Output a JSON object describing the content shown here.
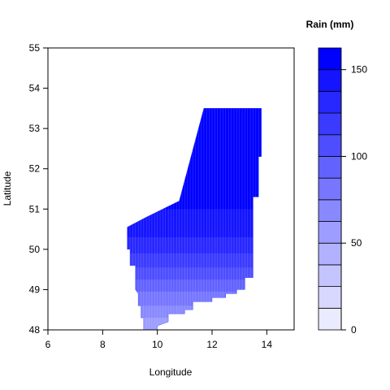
{
  "chart_data": {
    "type": "heatmap",
    "title": "",
    "xlabel": "Longitude",
    "ylabel": "Latitude",
    "xlim": [
      6,
      15
    ],
    "ylim": [
      48,
      55
    ],
    "xticks": [
      "6",
      "8",
      "10",
      "12",
      "14"
    ],
    "yticks": [
      "48",
      "49",
      "50",
      "51",
      "52",
      "53",
      "54",
      "55"
    ],
    "colorbar": {
      "title": "Rain (mm)",
      "range": [
        0,
        162.5
      ],
      "levels": 13,
      "ticks": [
        "0",
        "50",
        "100",
        "150"
      ],
      "low_color": "#ffffff",
      "high_color": "#0000ff"
    },
    "region_outline": [
      [
        9.5,
        48.0
      ],
      [
        10.0,
        48.0
      ],
      [
        10.0,
        48.1
      ],
      [
        10.4,
        48.2
      ],
      [
        10.4,
        48.4
      ],
      [
        11.0,
        48.4
      ],
      [
        11.0,
        48.5
      ],
      [
        11.3,
        48.5
      ],
      [
        11.3,
        48.7
      ],
      [
        12.0,
        48.7
      ],
      [
        12.0,
        48.8
      ],
      [
        12.5,
        48.8
      ],
      [
        12.5,
        48.9
      ],
      [
        12.9,
        48.9
      ],
      [
        12.9,
        49.0
      ],
      [
        13.2,
        49.0
      ],
      [
        13.2,
        49.3
      ],
      [
        13.5,
        49.3
      ],
      [
        13.5,
        50.0
      ],
      [
        13.5,
        50.3
      ],
      [
        13.5,
        51.3
      ],
      [
        13.7,
        51.3
      ],
      [
        13.7,
        52.3
      ],
      [
        13.8,
        52.3
      ],
      [
        13.8,
        53.5
      ],
      [
        11.7,
        53.5
      ],
      [
        10.8,
        51.2
      ],
      [
        9.6,
        50.8
      ],
      [
        8.9,
        50.55
      ],
      [
        8.9,
        50.0
      ],
      [
        9.0,
        50.0
      ],
      [
        9.0,
        49.6
      ],
      [
        9.2,
        49.6
      ],
      [
        9.2,
        49.3
      ],
      [
        9.2,
        49.0
      ],
      [
        9.3,
        48.9
      ],
      [
        9.3,
        48.6
      ],
      [
        9.4,
        48.6
      ],
      [
        9.4,
        48.3
      ],
      [
        9.5,
        48.3
      ]
    ],
    "rain_contours": [
      {
        "level_mm": 162.5,
        "lat_min": 51.0
      },
      {
        "level_mm": 150,
        "lat_min": 50.3
      },
      {
        "level_mm": 137.5,
        "lat_min": 49.9
      },
      {
        "level_mm": 125,
        "lat_min": 49.55
      },
      {
        "level_mm": 112.5,
        "lat_min": 49.25
      },
      {
        "level_mm": 100,
        "lat_min": 48.95
      },
      {
        "level_mm": 87.5,
        "lat_min": 48.6
      },
      {
        "level_mm": 75,
        "lat_min": 48.3
      },
      {
        "level_mm": 62.5,
        "lat_min": 48.0
      }
    ]
  }
}
